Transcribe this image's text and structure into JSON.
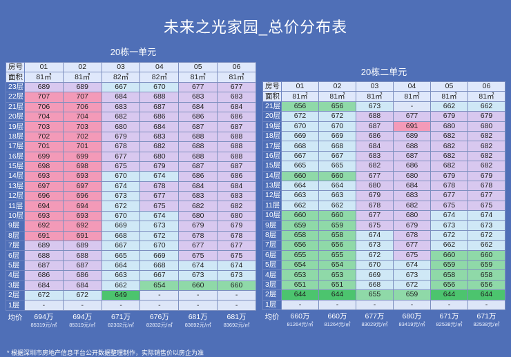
{
  "title": "未来之光家园_总价分布表",
  "t1": {
    "name": "20栋一单元",
    "hdr_label": "房号",
    "area_label": "面积",
    "units": [
      "01",
      "02",
      "03",
      "04",
      "05",
      "06"
    ],
    "areas": [
      "81㎡",
      "81㎡",
      "82㎡",
      "82㎡",
      "81㎡",
      "81㎡"
    ],
    "rows": [
      {
        "floor": "23层",
        "v": [
          "689",
          "689",
          "667",
          "670",
          "677",
          "677"
        ]
      },
      {
        "floor": "22层",
        "v": [
          "707",
          "707",
          "684",
          "688",
          "683",
          "683"
        ]
      },
      {
        "floor": "21层",
        "v": [
          "706",
          "706",
          "683",
          "687",
          "684",
          "684"
        ]
      },
      {
        "floor": "20层",
        "v": [
          "704",
          "704",
          "682",
          "686",
          "686",
          "686"
        ]
      },
      {
        "floor": "19层",
        "v": [
          "703",
          "703",
          "680",
          "684",
          "687",
          "687"
        ]
      },
      {
        "floor": "18层",
        "v": [
          "702",
          "702",
          "679",
          "683",
          "688",
          "688"
        ]
      },
      {
        "floor": "17层",
        "v": [
          "701",
          "701",
          "678",
          "682",
          "688",
          "688"
        ]
      },
      {
        "floor": "16层",
        "v": [
          "699",
          "699",
          "677",
          "680",
          "688",
          "688"
        ]
      },
      {
        "floor": "15层",
        "v": [
          "698",
          "698",
          "675",
          "679",
          "687",
          "687"
        ]
      },
      {
        "floor": "14层",
        "v": [
          "693",
          "693",
          "670",
          "674",
          "686",
          "686"
        ]
      },
      {
        "floor": "13层",
        "v": [
          "697",
          "697",
          "674",
          "678",
          "684",
          "684"
        ]
      },
      {
        "floor": "12层",
        "v": [
          "696",
          "696",
          "673",
          "677",
          "683",
          "683"
        ]
      },
      {
        "floor": "11层",
        "v": [
          "694",
          "694",
          "672",
          "675",
          "682",
          "682"
        ]
      },
      {
        "floor": "10层",
        "v": [
          "693",
          "693",
          "670",
          "674",
          "680",
          "680"
        ]
      },
      {
        "floor": "9层",
        "v": [
          "692",
          "692",
          "669",
          "673",
          "679",
          "679"
        ]
      },
      {
        "floor": "8层",
        "v": [
          "691",
          "691",
          "668",
          "672",
          "678",
          "678"
        ]
      },
      {
        "floor": "7层",
        "v": [
          "689",
          "689",
          "667",
          "670",
          "677",
          "677"
        ]
      },
      {
        "floor": "6层",
        "v": [
          "688",
          "688",
          "665",
          "669",
          "675",
          "675"
        ]
      },
      {
        "floor": "5层",
        "v": [
          "687",
          "687",
          "664",
          "668",
          "674",
          "674"
        ]
      },
      {
        "floor": "4层",
        "v": [
          "686",
          "686",
          "663",
          "667",
          "673",
          "673"
        ]
      },
      {
        "floor": "3层",
        "v": [
          "684",
          "684",
          "662",
          "654",
          "660",
          "660"
        ]
      },
      {
        "floor": "2层",
        "v": [
          "672",
          "672",
          "649",
          "-",
          "-",
          "-"
        ]
      },
      {
        "floor": "1层",
        "v": [
          "-",
          "-",
          "-",
          "-",
          "-",
          "-"
        ]
      }
    ],
    "avg_label": "均价",
    "avg": [
      {
        "p": "694万",
        "u": "85319元/㎡"
      },
      {
        "p": "694万",
        "u": "85319元/㎡"
      },
      {
        "p": "671万",
        "u": "82302元/㎡"
      },
      {
        "p": "676万",
        "u": "82832元/㎡"
      },
      {
        "p": "681万",
        "u": "83692元/㎡"
      },
      {
        "p": "681万",
        "u": "83692元/㎡"
      }
    ]
  },
  "t2": {
    "name": "20栋二单元",
    "hdr_label": "房号",
    "area_label": "面积",
    "units": [
      "01",
      "02",
      "03",
      "04",
      "05",
      "06"
    ],
    "areas": [
      "81㎡",
      "81㎡",
      "81㎡",
      "81㎡",
      "81㎡",
      "81㎡"
    ],
    "rows": [
      {
        "floor": "21层",
        "v": [
          "656",
          "656",
          "673",
          "-",
          "662",
          "662"
        ]
      },
      {
        "floor": "20层",
        "v": [
          "672",
          "672",
          "688",
          "677",
          "679",
          "679"
        ]
      },
      {
        "floor": "19层",
        "v": [
          "670",
          "670",
          "687",
          "691",
          "680",
          "680"
        ]
      },
      {
        "floor": "18层",
        "v": [
          "669",
          "669",
          "686",
          "689",
          "682",
          "682"
        ]
      },
      {
        "floor": "17层",
        "v": [
          "668",
          "668",
          "684",
          "688",
          "682",
          "682"
        ]
      },
      {
        "floor": "16层",
        "v": [
          "667",
          "667",
          "683",
          "687",
          "682",
          "682"
        ]
      },
      {
        "floor": "15层",
        "v": [
          "665",
          "665",
          "682",
          "686",
          "682",
          "682"
        ]
      },
      {
        "floor": "14层",
        "v": [
          "660",
          "660",
          "677",
          "680",
          "679",
          "679"
        ]
      },
      {
        "floor": "13层",
        "v": [
          "664",
          "664",
          "680",
          "684",
          "678",
          "678"
        ]
      },
      {
        "floor": "12层",
        "v": [
          "663",
          "663",
          "679",
          "683",
          "677",
          "677"
        ]
      },
      {
        "floor": "11层",
        "v": [
          "662",
          "662",
          "678",
          "682",
          "675",
          "675"
        ]
      },
      {
        "floor": "10层",
        "v": [
          "660",
          "660",
          "677",
          "680",
          "674",
          "674"
        ]
      },
      {
        "floor": "9层",
        "v": [
          "659",
          "659",
          "675",
          "679",
          "673",
          "673"
        ]
      },
      {
        "floor": "8层",
        "v": [
          "658",
          "658",
          "674",
          "678",
          "672",
          "672"
        ]
      },
      {
        "floor": "7层",
        "v": [
          "656",
          "656",
          "673",
          "677",
          "662",
          "662"
        ]
      },
      {
        "floor": "6层",
        "v": [
          "655",
          "655",
          "672",
          "675",
          "660",
          "660"
        ]
      },
      {
        "floor": "5层",
        "v": [
          "654",
          "654",
          "670",
          "674",
          "659",
          "659"
        ]
      },
      {
        "floor": "4层",
        "v": [
          "653",
          "653",
          "669",
          "673",
          "658",
          "658"
        ]
      },
      {
        "floor": "3层",
        "v": [
          "651",
          "651",
          "668",
          "672",
          "656",
          "656"
        ]
      },
      {
        "floor": "2层",
        "v": [
          "644",
          "644",
          "655",
          "659",
          "644",
          "644"
        ]
      },
      {
        "floor": "1层",
        "v": [
          "-",
          "-",
          "-",
          "-",
          "-",
          "-"
        ]
      }
    ],
    "avg_label": "均价",
    "avg": [
      {
        "p": "660万",
        "u": "81264元/㎡"
      },
      {
        "p": "660万",
        "u": "81264元/㎡"
      },
      {
        "p": "677万",
        "u": "83029元/㎡"
      },
      {
        "p": "680万",
        "u": "83419元/㎡"
      },
      {
        "p": "671万",
        "u": "82538元/㎡"
      },
      {
        "p": "671万",
        "u": "82538元/㎡"
      }
    ]
  },
  "note": "* 根据深圳市房地产信息平台公开数据整理制作，实际销售价以房企为准",
  "colors": {
    "background": "#4f6fb7",
    "header": "#dfe8fb",
    "blank": "#dde6f8",
    "high": "#f39ab8",
    "mid": "#d8c8ef",
    "low": "#cfe8f6",
    "green_light": "#8fd9a8",
    "green_dark": "#4cc46e"
  }
}
